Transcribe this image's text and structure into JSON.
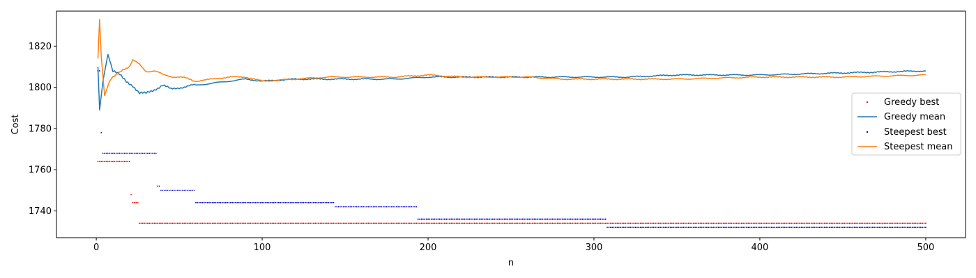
{
  "chart_data": {
    "type": "line",
    "title": "",
    "xlabel": "n",
    "ylabel": "Cost",
    "xlim": [
      -24,
      524
    ],
    "ylim": [
      1727,
      1837
    ],
    "xticks": [
      0,
      100,
      200,
      300,
      400,
      500
    ],
    "yticks": [
      1740,
      1760,
      1780,
      1800,
      1820
    ],
    "grid": false,
    "legend_position": "center-right",
    "series": [
      {
        "name": "Greedy best",
        "style": "points",
        "color": "#ff0000",
        "steps": [
          [
            1,
            1764
          ],
          [
            21,
            1748
          ],
          [
            22,
            1744
          ],
          [
            26,
            1734
          ]
        ]
      },
      {
        "name": "Greedy mean",
        "style": "line",
        "color": "#1f77b4",
        "keypoints": [
          [
            1,
            1810
          ],
          [
            2,
            1789
          ],
          [
            4,
            1803
          ],
          [
            7,
            1816
          ],
          [
            10,
            1808
          ],
          [
            14,
            1806
          ],
          [
            18,
            1803
          ],
          [
            22,
            1801
          ],
          [
            26,
            1797
          ],
          [
            30,
            1797
          ],
          [
            35,
            1799
          ],
          [
            40,
            1801
          ],
          [
            45,
            1799
          ],
          [
            50,
            1800
          ],
          [
            60,
            1801
          ],
          [
            70,
            1802
          ],
          [
            80,
            1803
          ],
          [
            90,
            1804
          ],
          [
            100,
            1803
          ],
          [
            120,
            1804
          ],
          [
            140,
            1804
          ],
          [
            160,
            1804
          ],
          [
            180,
            1804
          ],
          [
            200,
            1805
          ],
          [
            240,
            1805
          ],
          [
            280,
            1805
          ],
          [
            300,
            1805
          ],
          [
            320,
            1805
          ],
          [
            350,
            1806
          ],
          [
            400,
            1806
          ],
          [
            450,
            1807
          ],
          [
            500,
            1808
          ]
        ]
      },
      {
        "name": "Steepest best",
        "style": "points",
        "color": "#0000cc",
        "steps": [
          [
            1,
            1808
          ],
          [
            3,
            1778
          ],
          [
            4,
            1768
          ],
          [
            37,
            1752
          ],
          [
            39,
            1750
          ],
          [
            60,
            1744
          ],
          [
            144,
            1742
          ],
          [
            194,
            1736
          ],
          [
            308,
            1732
          ]
        ]
      },
      {
        "name": "Steepest mean",
        "style": "line",
        "color": "#ff7f0e",
        "keypoints": [
          [
            1,
            1814
          ],
          [
            2,
            1833
          ],
          [
            3,
            1815
          ],
          [
            5,
            1796
          ],
          [
            8,
            1803
          ],
          [
            12,
            1806
          ],
          [
            16,
            1809
          ],
          [
            20,
            1810
          ],
          [
            22,
            1813
          ],
          [
            26,
            1811
          ],
          [
            30,
            1808
          ],
          [
            35,
            1808
          ],
          [
            40,
            1806
          ],
          [
            50,
            1805
          ],
          [
            60,
            1803
          ],
          [
            70,
            1804
          ],
          [
            80,
            1805
          ],
          [
            90,
            1805
          ],
          [
            100,
            1803
          ],
          [
            120,
            1804
          ],
          [
            140,
            1805
          ],
          [
            160,
            1805
          ],
          [
            180,
            1805
          ],
          [
            200,
            1806
          ],
          [
            220,
            1805
          ],
          [
            240,
            1805
          ],
          [
            260,
            1805
          ],
          [
            280,
            1804
          ],
          [
            300,
            1804
          ],
          [
            320,
            1804
          ],
          [
            350,
            1804
          ],
          [
            400,
            1805
          ],
          [
            450,
            1805
          ],
          [
            500,
            1806
          ]
        ]
      }
    ]
  }
}
